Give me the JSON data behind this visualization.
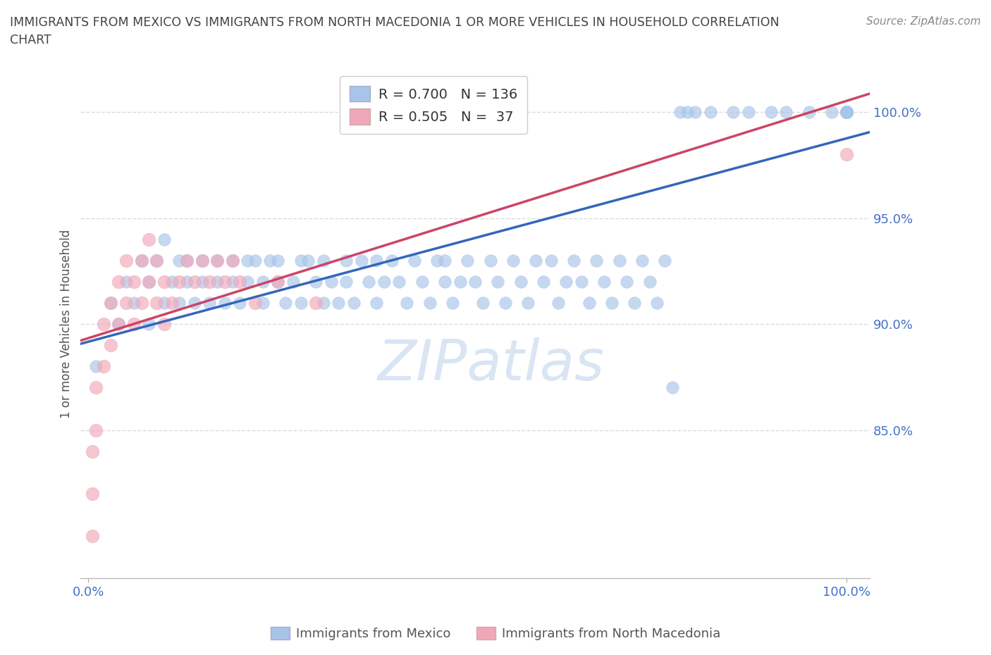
{
  "title_line1": "IMMIGRANTS FROM MEXICO VS IMMIGRANTS FROM NORTH MACEDONIA 1 OR MORE VEHICLES IN HOUSEHOLD CORRELATION",
  "title_line2": "CHART",
  "source": "Source: ZipAtlas.com",
  "ylabel": "1 or more Vehicles in Household",
  "watermark": "ZIPatlas",
  "R_mexico": 0.7,
  "N_mexico": 136,
  "R_macedonia": 0.505,
  "N_macedonia": 37,
  "mexico_color": "#a8c4e8",
  "macedonia_color": "#f0a8b8",
  "mexico_line_color": "#3366bb",
  "macedonia_line_color": "#cc4466",
  "background_color": "#ffffff",
  "grid_color": "#cccccc",
  "title_color": "#444444",
  "tick_color": "#4472c4",
  "mexico_x": [
    1,
    3,
    4,
    5,
    6,
    7,
    8,
    8,
    9,
    10,
    10,
    11,
    12,
    12,
    13,
    13,
    14,
    15,
    15,
    16,
    17,
    17,
    18,
    19,
    19,
    20,
    21,
    21,
    22,
    23,
    23,
    24,
    25,
    25,
    26,
    27,
    28,
    28,
    29,
    30,
    31,
    31,
    32,
    33,
    34,
    34,
    35,
    36,
    37,
    38,
    38,
    39,
    40,
    41,
    42,
    43,
    44,
    45,
    46,
    47,
    47,
    48,
    49,
    50,
    51,
    52,
    53,
    54,
    55,
    56,
    57,
    58,
    59,
    60,
    61,
    62,
    63,
    64,
    65,
    66,
    67,
    68,
    69,
    70,
    71,
    72,
    73,
    74,
    75,
    76,
    77,
    78,
    79,
    80,
    82,
    85,
    87,
    90,
    92,
    95,
    98,
    100,
    100,
    100,
    100,
    100,
    100,
    100,
    100,
    100,
    100,
    100,
    100,
    100,
    100,
    100,
    100,
    100,
    100,
    100,
    100,
    100,
    100,
    100,
    100,
    100,
    100,
    100,
    100,
    100,
    100,
    100,
    100,
    100,
    100,
    100
  ],
  "mexico_y": [
    88,
    91,
    90,
    92,
    91,
    93,
    90,
    92,
    93,
    91,
    94,
    92,
    93,
    91,
    92,
    93,
    91,
    93,
    92,
    91,
    93,
    92,
    91,
    93,
    92,
    91,
    93,
    92,
    93,
    92,
    91,
    93,
    92,
    93,
    91,
    92,
    93,
    91,
    93,
    92,
    91,
    93,
    92,
    91,
    93,
    92,
    91,
    93,
    92,
    91,
    93,
    92,
    93,
    92,
    91,
    93,
    92,
    91,
    93,
    92,
    93,
    91,
    92,
    93,
    92,
    91,
    93,
    92,
    91,
    93,
    92,
    91,
    93,
    92,
    93,
    91,
    92,
    93,
    92,
    91,
    93,
    92,
    91,
    93,
    92,
    91,
    93,
    92,
    91,
    93,
    87,
    100,
    100,
    100,
    100,
    100,
    100,
    100,
    100,
    100,
    100,
    100,
    100,
    100,
    100,
    100,
    100,
    100,
    100,
    100,
    100,
    100,
    100,
    100,
    100,
    100,
    100,
    100,
    100,
    100,
    100,
    100,
    100,
    100,
    100,
    100,
    100,
    100,
    100,
    100,
    100,
    100,
    100,
    100,
    100,
    100
  ],
  "macedonia_x": [
    0.5,
    0.5,
    0.5,
    1,
    1,
    2,
    2,
    3,
    3,
    4,
    4,
    5,
    5,
    6,
    6,
    7,
    7,
    8,
    8,
    9,
    9,
    10,
    10,
    11,
    12,
    13,
    14,
    15,
    16,
    17,
    18,
    19,
    20,
    22,
    25,
    30,
    100
  ],
  "macedonia_y": [
    80,
    82,
    84,
    85,
    87,
    88,
    90,
    89,
    91,
    90,
    92,
    91,
    93,
    90,
    92,
    91,
    93,
    92,
    94,
    91,
    93,
    90,
    92,
    91,
    92,
    93,
    92,
    93,
    92,
    93,
    92,
    93,
    92,
    91,
    92,
    91,
    98
  ],
  "xlim_min": -1,
  "xlim_max": 103,
  "ylim_min": 78,
  "ylim_max": 102
}
